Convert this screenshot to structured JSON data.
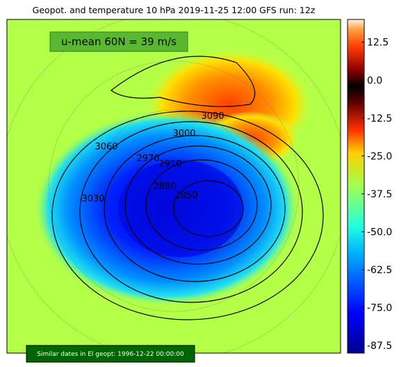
{
  "title": "Geopot. and temperature 10 hPa 2019-11-25 12:00 GFS run: 12z",
  "umean_label": "u-mean 60N = 39 m/s",
  "similar_label": "Similar dates in El geopt: 1996-12-22 00:00:00",
  "colorbar": {
    "clim": [
      -90,
      20
    ],
    "ticks": [
      12.5,
      {
        "value": 0,
        "label": "0.0"
      },
      -12.5,
      {
        "value": -25,
        "label": "-25.0"
      },
      -37.5,
      {
        "value": -50,
        "label": "-50.0"
      },
      -62.5,
      {
        "value": -75,
        "label": "-75.0"
      },
      -87.5
    ]
  },
  "contour_labels": [
    3090,
    3000,
    3060,
    2970,
    2910,
    2880,
    2850,
    3030
  ]
}
